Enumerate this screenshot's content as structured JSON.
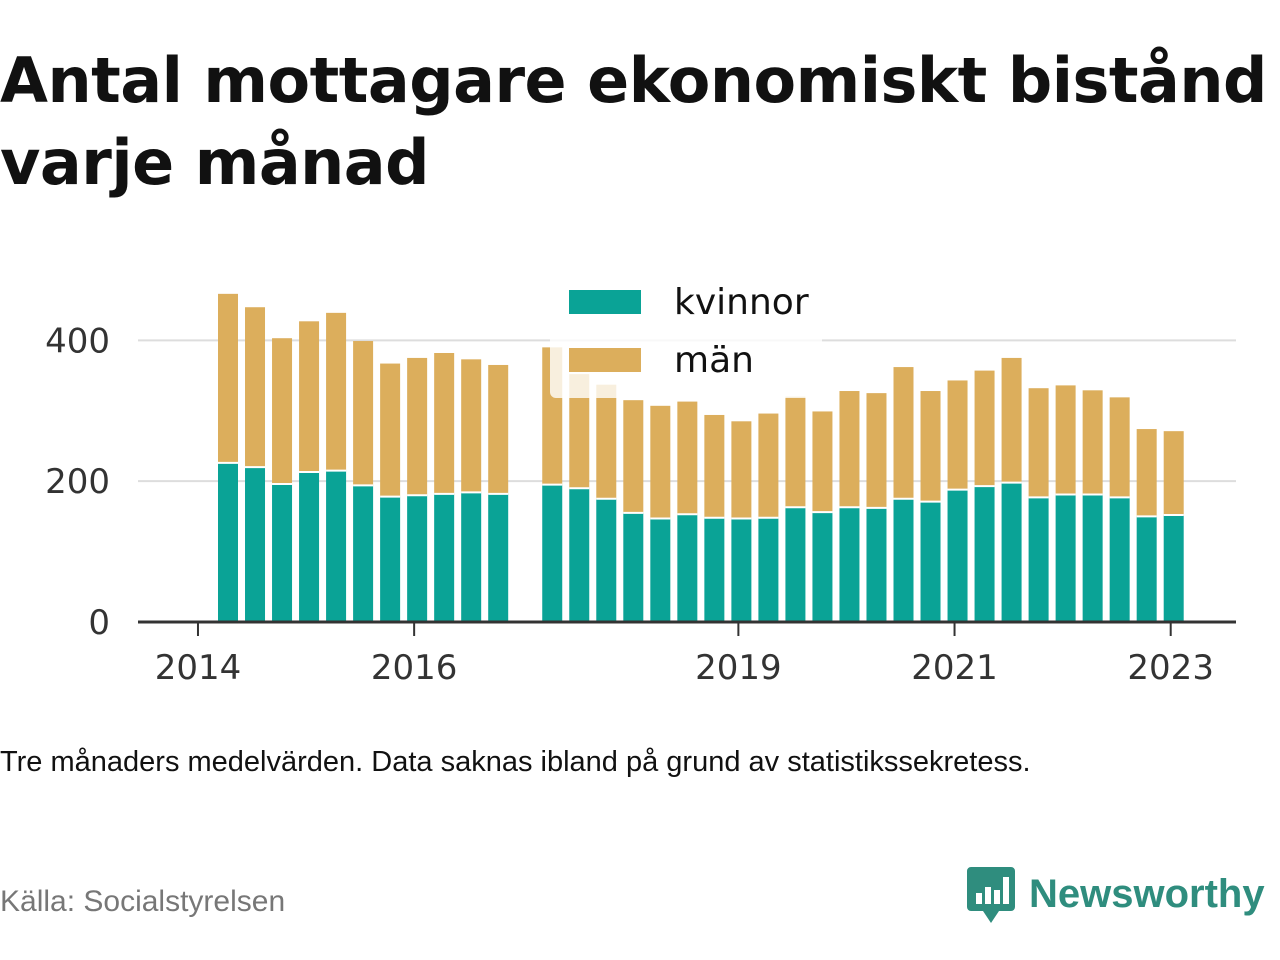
{
  "title": "Antal mottagare ekonomiskt bistånd varje månad",
  "note": "Tre månaders medelvärden. Data saknas ibland på grund av statistikssekretess.",
  "source": "Källa: Socialstyrelsen",
  "brand": {
    "name": "Newsworthy",
    "icon": "newsworthy-logo-icon",
    "color": "#2f8d7e"
  },
  "chart_data": {
    "type": "bar",
    "stacked": true,
    "grid": true,
    "legend_position": "top-center",
    "ylim": [
      0,
      480
    ],
    "y_ticks": [
      0,
      200,
      400
    ],
    "x_ticks": [
      "2014",
      "2016",
      "2019",
      "2021",
      "2023"
    ],
    "colors": {
      "kvinnor": "#0aa396",
      "män": "#dcae5c"
    },
    "categories": [
      "2014-04",
      "2014-07",
      "2014-10",
      "2015-01",
      "2015-04",
      "2015-07",
      "2015-10",
      "2016-01",
      "2016-04",
      "2016-07",
      "2016-10",
      "2017-01",
      "2017-04",
      "2017-07",
      "2017-10",
      "2018-01",
      "2018-04",
      "2018-07",
      "2018-10",
      "2019-01",
      "2019-04",
      "2019-07",
      "2019-10",
      "2020-01",
      "2020-04",
      "2020-07",
      "2020-10",
      "2021-01",
      "2021-04",
      "2021-07",
      "2021-10",
      "2022-01",
      "2022-04",
      "2022-07",
      "2022-10",
      "2023-01"
    ],
    "series": [
      {
        "name": "kvinnor",
        "values": [
          226,
          220,
          196,
          213,
          215,
          194,
          178,
          180,
          182,
          184,
          182,
          null,
          195,
          190,
          175,
          155,
          147,
          153,
          148,
          147,
          148,
          163,
          156,
          163,
          162,
          175,
          171,
          188,
          193,
          198,
          177,
          181,
          181,
          177,
          150,
          152
        ]
      },
      {
        "name": "män",
        "values": [
          240,
          227,
          207,
          214,
          224,
          205,
          189,
          195,
          200,
          189,
          183,
          null,
          195,
          162,
          162,
          160,
          160,
          160,
          146,
          138,
          148,
          157,
          143,
          165,
          163,
          187,
          157,
          155,
          164,
          177,
          155,
          155,
          148,
          142,
          124,
          119
        ]
      }
    ]
  }
}
